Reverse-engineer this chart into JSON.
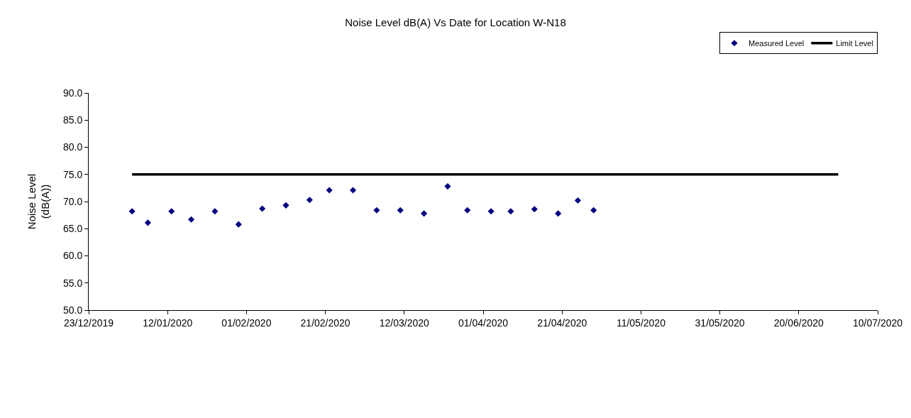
{
  "chart_data": {
    "type": "scatter",
    "title": "Noise Level dB(A) Vs Date for Location W-N18",
    "ylabel": "Noise Level\n(dB(A))",
    "x": [
      "2020-01-03",
      "2020-01-07",
      "2020-01-13",
      "2020-01-18",
      "2020-01-24",
      "2020-01-30",
      "2020-02-05",
      "2020-02-11",
      "2020-02-17",
      "2020-02-22",
      "2020-02-28",
      "2020-03-05",
      "2020-03-11",
      "2020-03-17",
      "2020-03-23",
      "2020-03-28",
      "2020-04-03",
      "2020-04-08",
      "2020-04-14",
      "2020-04-20",
      "2020-04-25",
      "2020-04-29"
    ],
    "series": [
      {
        "name": "Measured Level",
        "marker": "diamond",
        "color": "#000080",
        "values": [
          68.2,
          66.1,
          68.2,
          66.7,
          68.2,
          65.8,
          68.7,
          69.3,
          70.3,
          72.1,
          72.1,
          68.4,
          68.4,
          67.8,
          72.8,
          68.4,
          68.2,
          68.2,
          68.6,
          67.8,
          70.2,
          68.4
        ]
      },
      {
        "name": "Limit Level",
        "type": "line",
        "marker": "none",
        "color": "#000000",
        "x": [
          "2020-01-03",
          "2020-06-30"
        ],
        "values": [
          75,
          75
        ]
      }
    ],
    "xlim": [
      "2019-12-23",
      "2020-07-10"
    ],
    "xticks": [
      {
        "value": "2019-12-23",
        "label": "23/12/2019"
      },
      {
        "value": "2020-01-12",
        "label": "12/01/2020"
      },
      {
        "value": "2020-02-01",
        "label": "01/02/2020"
      },
      {
        "value": "2020-02-21",
        "label": "21/02/2020"
      },
      {
        "value": "2020-03-12",
        "label": "12/03/2020"
      },
      {
        "value": "2020-04-01",
        "label": "01/04/2020"
      },
      {
        "value": "2020-04-21",
        "label": "21/04/2020"
      },
      {
        "value": "2020-05-11",
        "label": "11/05/2020"
      },
      {
        "value": "2020-05-31",
        "label": "31/05/2020"
      },
      {
        "value": "2020-06-20",
        "label": "20/06/2020"
      },
      {
        "value": "2020-07-10",
        "label": "10/07/2020"
      }
    ],
    "ylim": [
      50,
      90
    ],
    "yticks": [
      {
        "value": 50,
        "label": "50.0"
      },
      {
        "value": 55,
        "label": "55.0"
      },
      {
        "value": 60,
        "label": "60.0"
      },
      {
        "value": 65,
        "label": "65.0"
      },
      {
        "value": 70,
        "label": "70.0"
      },
      {
        "value": 75,
        "label": "75.0"
      },
      {
        "value": 80,
        "label": "80.0"
      },
      {
        "value": 85,
        "label": "85.0"
      },
      {
        "value": 90,
        "label": "90.0"
      }
    ],
    "grid": false,
    "legend": "top right"
  }
}
